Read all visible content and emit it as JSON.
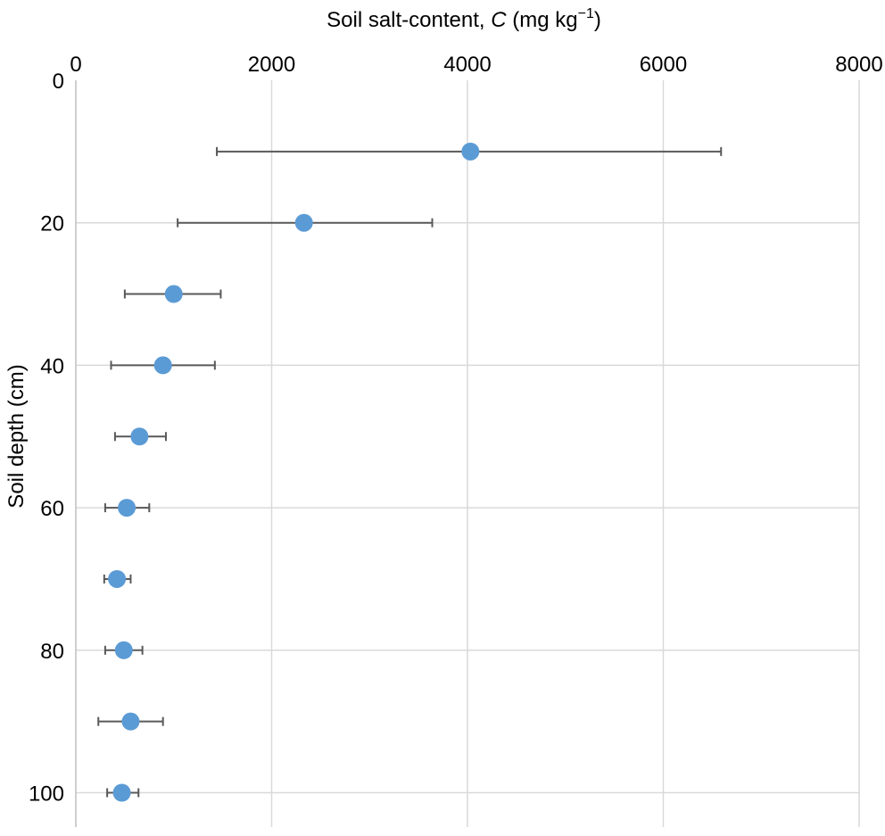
{
  "chart_data": {
    "type": "scatter",
    "title": "",
    "xlabel": {
      "prefix": "Soil salt-content, ",
      "symbol": "C",
      "unit_open": " (mg kg",
      "unit_sup": "−1",
      "unit_close": ")"
    },
    "ylabel": "Soil depth (cm)",
    "x_axis_position": "top",
    "y_axis_inverted": true,
    "xlim": [
      0,
      8000
    ],
    "ylim": [
      0,
      105
    ],
    "xticks": [
      0,
      2000,
      4000,
      6000,
      8000
    ],
    "yticks": [
      0,
      20,
      40,
      60,
      80,
      100
    ],
    "grid": true,
    "marker_color": "#5b9bd5",
    "errorbar_color": "#595959",
    "points": [
      {
        "depth": 10,
        "c": 4030,
        "err_low": 1440,
        "err_high": 6590
      },
      {
        "depth": 20,
        "c": 2330,
        "err_low": 1040,
        "err_high": 3640
      },
      {
        "depth": 30,
        "c": 1000,
        "err_low": 500,
        "err_high": 1480
      },
      {
        "depth": 40,
        "c": 890,
        "err_low": 360,
        "err_high": 1420
      },
      {
        "depth": 50,
        "c": 650,
        "err_low": 400,
        "err_high": 920
      },
      {
        "depth": 60,
        "c": 520,
        "err_low": 300,
        "err_high": 750
      },
      {
        "depth": 70,
        "c": 420,
        "err_low": 290,
        "err_high": 560
      },
      {
        "depth": 80,
        "c": 490,
        "err_low": 300,
        "err_high": 680
      },
      {
        "depth": 90,
        "c": 560,
        "err_low": 230,
        "err_high": 890
      },
      {
        "depth": 100,
        "c": 470,
        "err_low": 320,
        "err_high": 640
      }
    ]
  }
}
